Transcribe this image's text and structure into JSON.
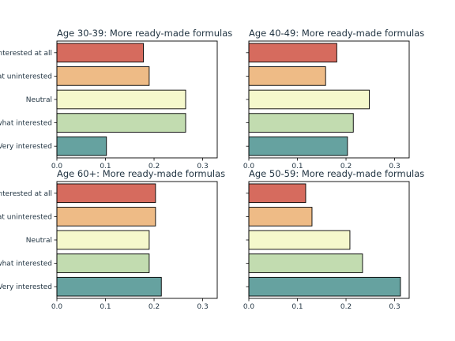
{
  "chart_data": [
    {
      "type": "bar",
      "orientation": "horizontal",
      "title": "Age 30-39: More ready-made formulas",
      "categories": [
        "Not interested at all",
        "Somewhat uninterested",
        "Neutral",
        "Somewhat interested",
        "Very interested"
      ],
      "values": [
        0.178,
        0.19,
        0.265,
        0.265,
        0.102
      ],
      "xlim": [
        0,
        0.33
      ],
      "xticks": [
        "0.0",
        "0.1",
        "0.2",
        "0.3"
      ],
      "show_category_labels": true
    },
    {
      "type": "bar",
      "orientation": "horizontal",
      "title": "Age 40-49: More ready-made formulas",
      "categories": [
        "Not interested at all",
        "Somewhat uninterested",
        "Neutral",
        "Somewhat interested",
        "Very interested"
      ],
      "values": [
        0.181,
        0.158,
        0.248,
        0.215,
        0.203
      ],
      "xlim": [
        0,
        0.33
      ],
      "xticks": [
        "0.0",
        "0.1",
        "0.2",
        "0.3"
      ],
      "show_category_labels": false
    },
    {
      "type": "bar",
      "orientation": "horizontal",
      "title": "Age 60+: More ready-made formulas",
      "categories": [
        "Not interested at all",
        "Somewhat uninterested",
        "Neutral",
        "Somewhat interested",
        "Very interested"
      ],
      "values": [
        0.203,
        0.203,
        0.19,
        0.19,
        0.215
      ],
      "xlim": [
        0,
        0.33
      ],
      "xticks": [
        "0.0",
        "0.1",
        "0.2",
        "0.3"
      ],
      "show_category_labels": true
    },
    {
      "type": "bar",
      "orientation": "horizontal",
      "title": "Age 50-59: More ready-made formulas",
      "categories": [
        "Not interested at all",
        "Somewhat uninterested",
        "Neutral",
        "Somewhat interested",
        "Very interested"
      ],
      "values": [
        0.117,
        0.13,
        0.208,
        0.234,
        0.312
      ],
      "xlim": [
        0,
        0.33
      ],
      "xticks": [
        "0.0",
        "0.1",
        "0.2",
        "0.3"
      ],
      "show_category_labels": false
    }
  ],
  "colors": [
    "#d66b5e",
    "#eebb86",
    "#f5f8cc",
    "#c2dcb0",
    "#66a2a0"
  ]
}
